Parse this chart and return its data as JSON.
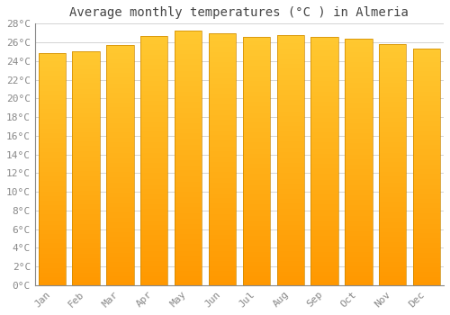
{
  "title": "Average monthly temperatures (°C ) in Almeria",
  "months": [
    "Jan",
    "Feb",
    "Mar",
    "Apr",
    "May",
    "Jun",
    "Jul",
    "Aug",
    "Sep",
    "Oct",
    "Nov",
    "Dec"
  ],
  "values": [
    24.8,
    25.0,
    25.7,
    26.7,
    27.3,
    27.0,
    26.6,
    26.8,
    26.6,
    26.4,
    25.8,
    25.3
  ],
  "bar_color_top": "#FFC830",
  "bar_color_bottom": "#FF9800",
  "bar_edge_color": "#CC8800",
  "ylim": [
    0,
    28
  ],
  "ytick_step": 2,
  "background_color": "#FFFFFF",
  "grid_color": "#CCCCCC",
  "font_family": "monospace",
  "title_fontsize": 10,
  "tick_fontsize": 8
}
